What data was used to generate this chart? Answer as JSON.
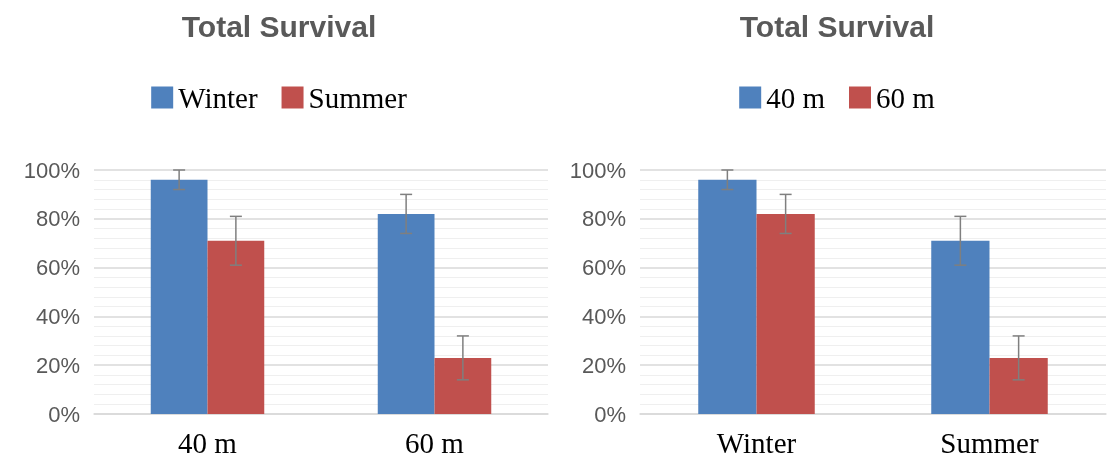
{
  "chart_data": [
    {
      "type": "bar",
      "title": "Total Survival",
      "categories": [
        "40 m",
        "60 m"
      ],
      "series": [
        {
          "name": "Winter",
          "color": "#4f81bd",
          "values": [
            96,
            82
          ],
          "errors": [
            4,
            8
          ]
        },
        {
          "name": "Summer",
          "color": "#c0504d",
          "values": [
            71,
            23
          ],
          "errors": [
            10,
            9
          ]
        }
      ],
      "ylim": [
        0,
        100
      ],
      "yticks": [
        {
          "value": 0,
          "label": "0%"
        },
        {
          "value": 20,
          "label": "20%"
        },
        {
          "value": 40,
          "label": "40%"
        },
        {
          "value": 60,
          "label": "60%"
        },
        {
          "value": 80,
          "label": "80%"
        },
        {
          "value": 100,
          "label": "100%"
        }
      ],
      "grid": "y",
      "legend": "top"
    },
    {
      "type": "bar",
      "title": "Total Survival",
      "categories": [
        "Winter",
        "Summer"
      ],
      "series": [
        {
          "name": "40 m",
          "color": "#4f81bd",
          "values": [
            96,
            71
          ],
          "errors": [
            4,
            10
          ]
        },
        {
          "name": "60 m",
          "color": "#c0504d",
          "values": [
            82,
            23
          ],
          "errors": [
            8,
            9
          ]
        }
      ],
      "ylim": [
        0,
        100
      ],
      "yticks": [
        {
          "value": 0,
          "label": "0%"
        },
        {
          "value": 20,
          "label": "20%"
        },
        {
          "value": 40,
          "label": "40%"
        },
        {
          "value": 60,
          "label": "60%"
        },
        {
          "value": 80,
          "label": "80%"
        },
        {
          "value": 100,
          "label": "100%"
        }
      ],
      "grid": "y",
      "legend": "top"
    }
  ]
}
